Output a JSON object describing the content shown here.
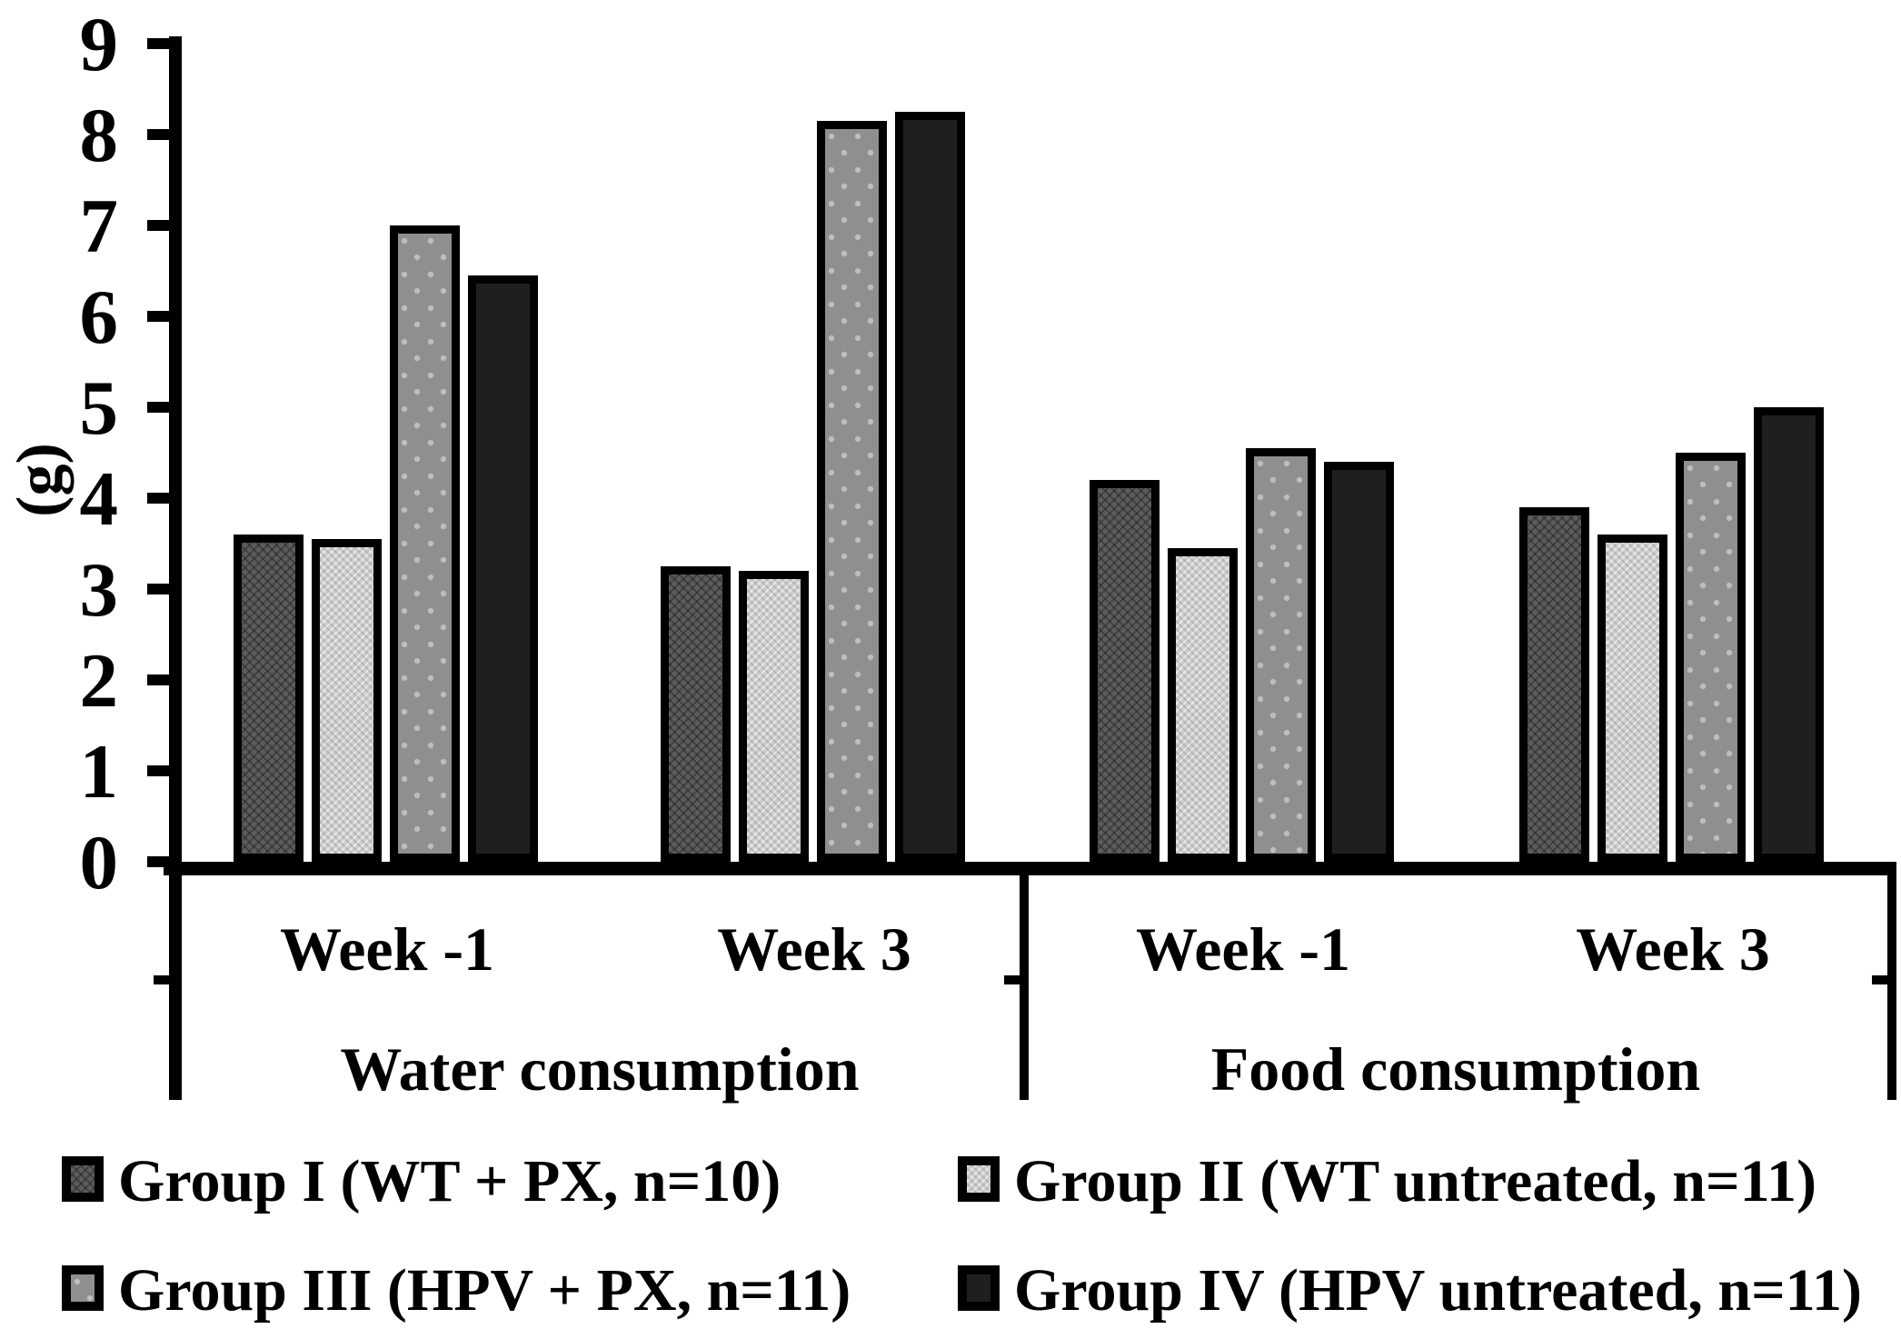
{
  "chart_data": {
    "type": "bar",
    "title": "",
    "ylabel": "(g)",
    "ylim": [
      0,
      9
    ],
    "yticks": [
      0,
      1,
      2,
      3,
      4,
      5,
      6,
      7,
      8,
      9
    ],
    "grid": false,
    "legend_position": "bottom",
    "series": [
      {
        "name": "Group I (WT + PX, n=10)",
        "pattern": "dark-crosshatch",
        "color": "#5c5c5c"
      },
      {
        "name": "Group II (WT untreated, n=11)",
        "pattern": "light-checker",
        "color": "#cdcdcd"
      },
      {
        "name": "Group III (HPV + PX, n=11)",
        "pattern": "gray-dots",
        "color": "#8f8f8f"
      },
      {
        "name": "Group IV (HPV untreated, n=11)",
        "pattern": "solid-black",
        "color": "#1f1f1f"
      }
    ],
    "sections": [
      {
        "label": "Water consumption",
        "weeks": [
          {
            "label": "Week -1",
            "values": [
              3.6,
              3.55,
              7.0,
              6.45
            ]
          },
          {
            "label": "Week 3",
            "values": [
              3.25,
              3.2,
              8.15,
              8.25
            ]
          }
        ]
      },
      {
        "label": "Food consumption",
        "weeks": [
          {
            "label": "Week -1",
            "values": [
              4.2,
              3.45,
              4.55,
              4.4
            ]
          },
          {
            "label": "Week 3",
            "values": [
              3.9,
              3.6,
              4.5,
              5.0
            ]
          }
        ]
      }
    ]
  },
  "y_axis": {
    "label": "(g)"
  }
}
